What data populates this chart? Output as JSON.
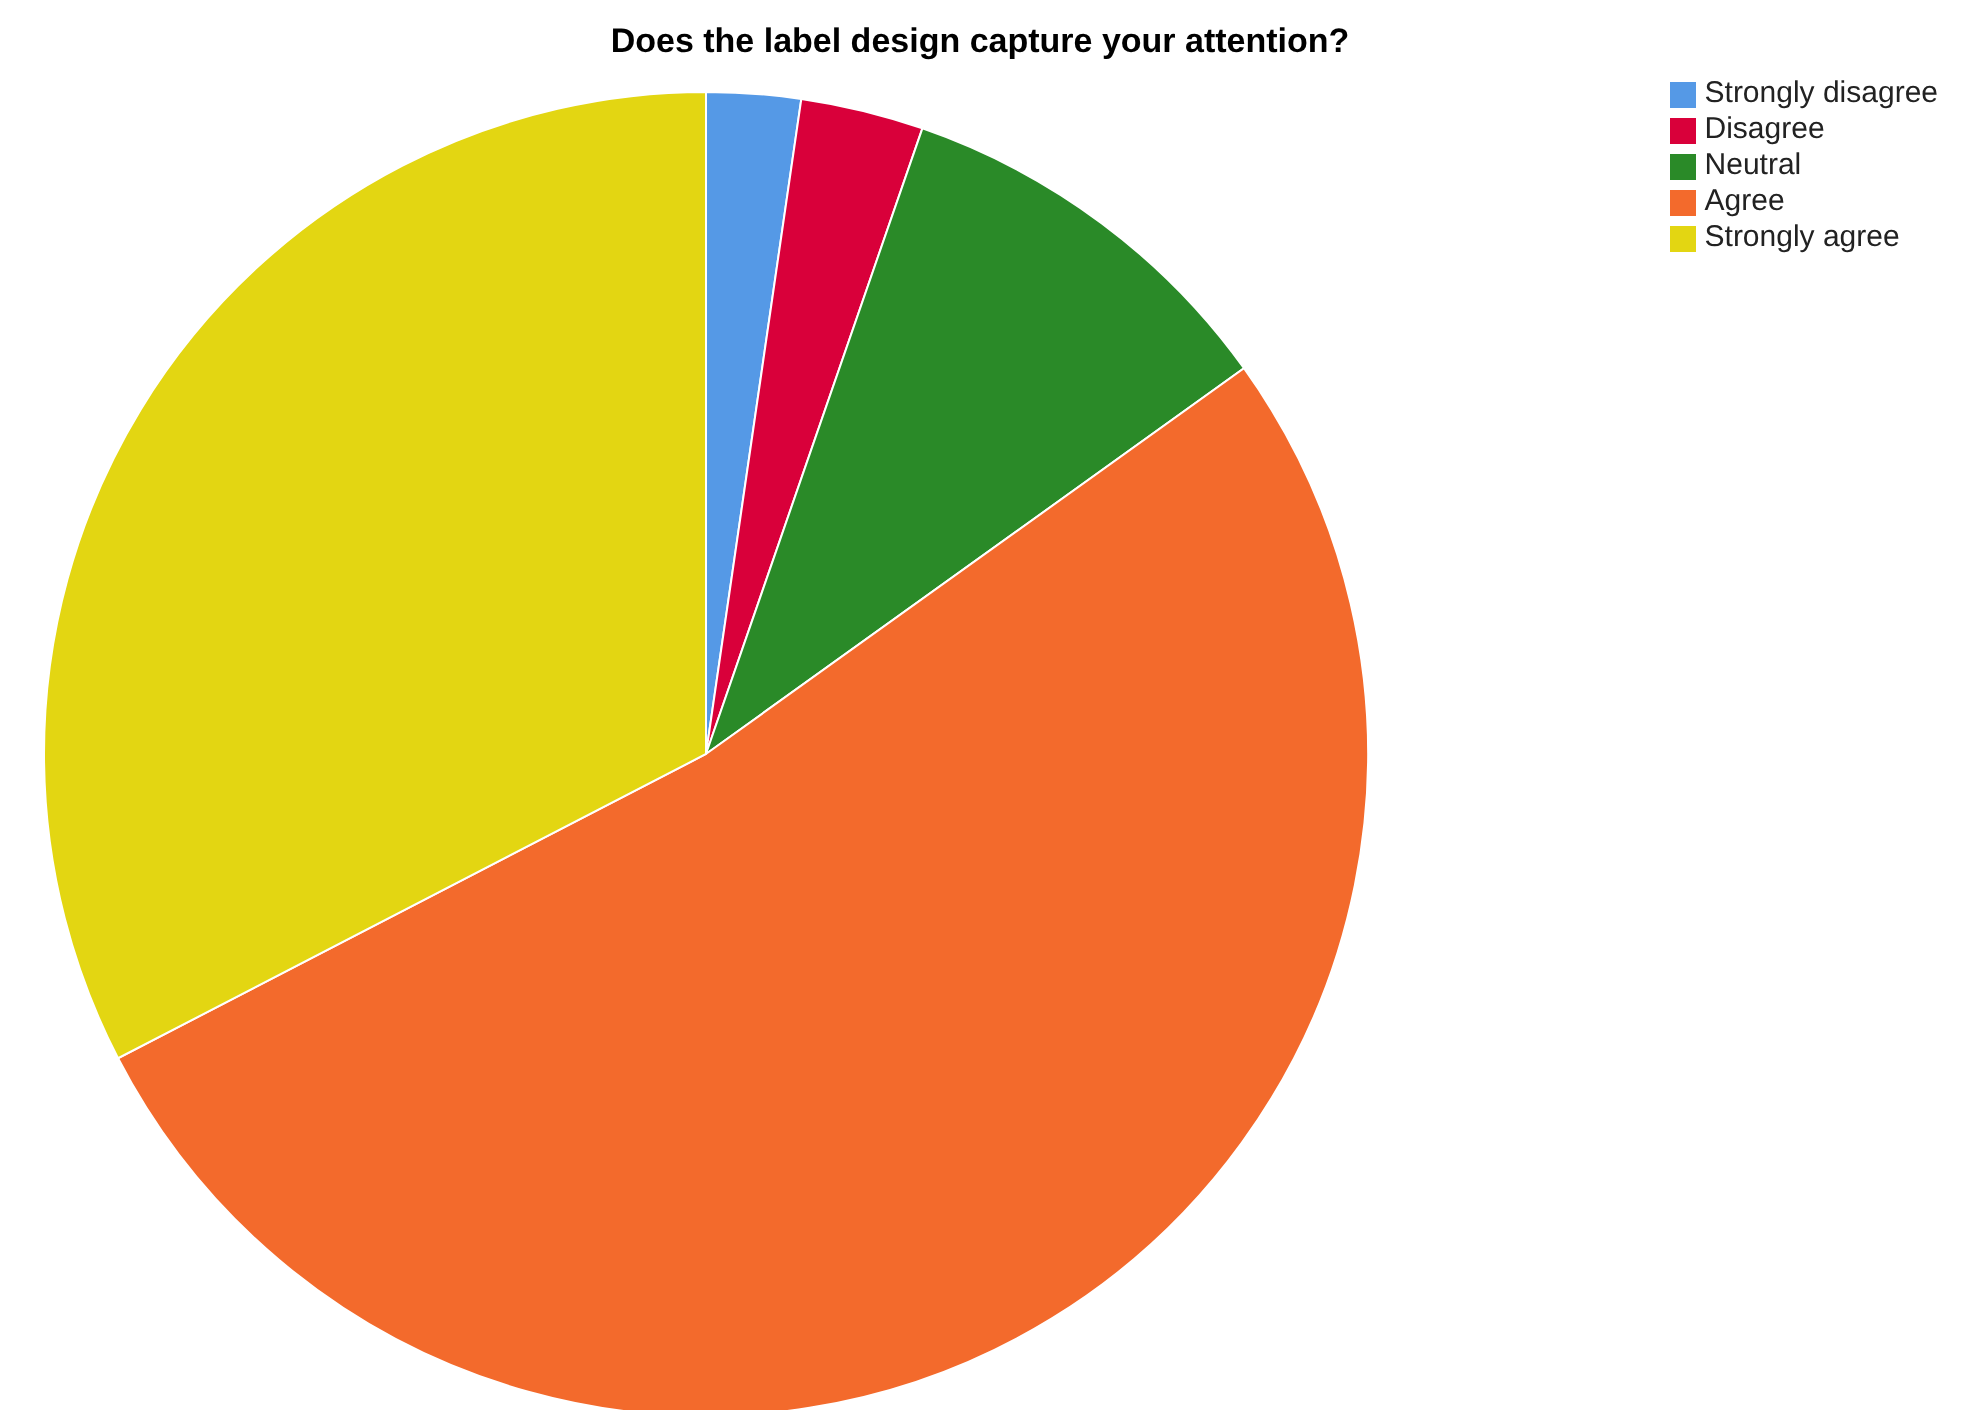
{
  "chart_data": {
    "type": "pie",
    "title": "Does the label design capture your attention?",
    "categories": [
      "Strongly disagree",
      "Disagree",
      "Neutral",
      "Agree",
      "Strongly agree"
    ],
    "values": [
      2.3,
      3.0,
      9.8,
      52.3,
      32.6
    ],
    "colors": [
      "#5599e6",
      "#d9003a",
      "#2a8a28",
      "#f36a2c",
      "#e3d612"
    ],
    "legend": "top right"
  }
}
